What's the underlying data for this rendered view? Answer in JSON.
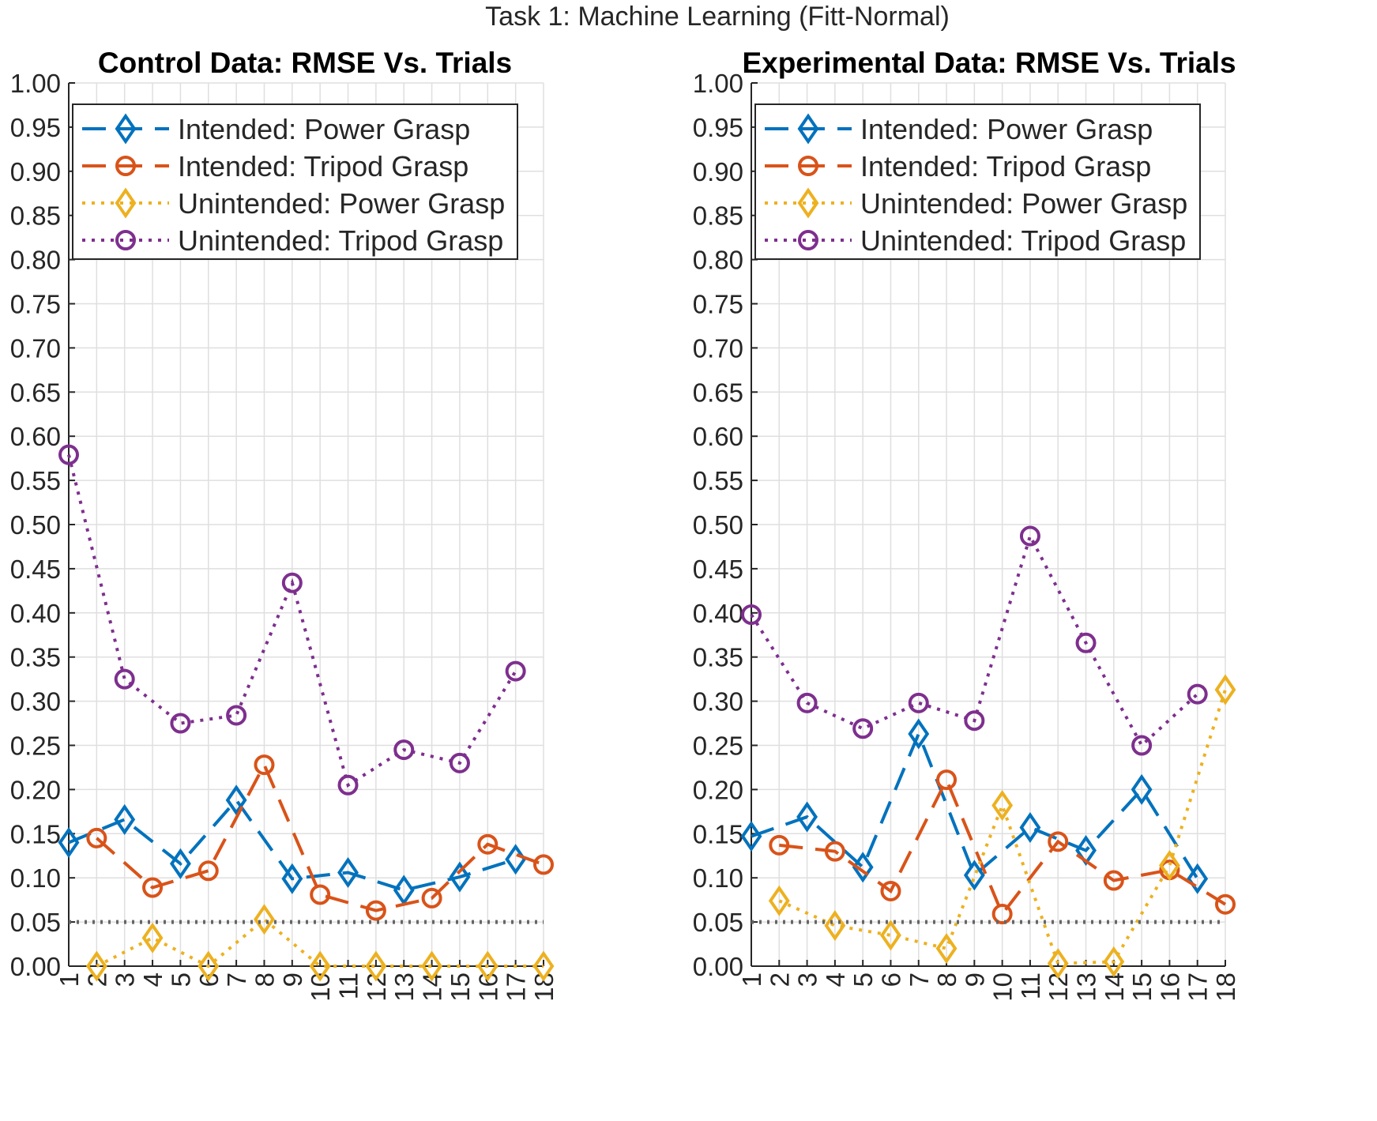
{
  "figure_title": "Task 1: Machine Learning (Fitt-Normal)",
  "chart_data": [
    {
      "type": "line",
      "title": "Control Data: RMSE Vs. Trials",
      "xlabel": "",
      "ylabel": "",
      "x": [
        1,
        2,
        3,
        4,
        5,
        6,
        7,
        8,
        9,
        10,
        11,
        12,
        13,
        14,
        15,
        16,
        17,
        18
      ],
      "x_tick_labels": [
        "1",
        "2",
        "3",
        "4",
        "5",
        "6",
        "7",
        "8",
        "9",
        "10",
        "11",
        "12",
        "13",
        "14",
        "15",
        "16",
        "17",
        "18"
      ],
      "y_tick_labels": [
        "0.00",
        "0.05",
        "0.10",
        "0.15",
        "0.20",
        "0.25",
        "0.30",
        "0.35",
        "0.40",
        "0.45",
        "0.50",
        "0.55",
        "0.60",
        "0.65",
        "0.70",
        "0.75",
        "0.80",
        "0.85",
        "0.90",
        "0.95",
        "1.00"
      ],
      "xlim": [
        1,
        18
      ],
      "ylim": [
        0,
        1
      ],
      "grid": true,
      "legend_position": "top-left",
      "series": [
        {
          "name": "Intended: Power Grasp",
          "color": "#0072BD",
          "line": "dashed",
          "marker": "diamond",
          "x": [
            1,
            3,
            5,
            7,
            9,
            11,
            13,
            15,
            17
          ],
          "values": [
            0.14,
            0.166,
            0.116,
            0.188,
            0.099,
            0.106,
            0.086,
            0.101,
            0.121
          ]
        },
        {
          "name": "Intended: Tripod Grasp",
          "color": "#D95319",
          "line": "dashed",
          "marker": "circle",
          "x": [
            2,
            4,
            6,
            8,
            10,
            12,
            14,
            16,
            18
          ],
          "values": [
            0.145,
            0.089,
            0.108,
            0.228,
            0.081,
            0.063,
            0.077,
            0.138,
            0.115
          ]
        },
        {
          "name": "Unintended: Power Grasp",
          "color": "#EDB120",
          "line": "dotted",
          "marker": "diamond",
          "x": [
            2,
            4,
            6,
            8,
            10,
            12,
            14,
            16,
            18
          ],
          "values": [
            0.0,
            0.032,
            0.0,
            0.053,
            0.0,
            0.0,
            0.0,
            0.0,
            0.0
          ]
        },
        {
          "name": "Unintended: Tripod Grasp",
          "color": "#7E2F8E",
          "line": "dotted",
          "marker": "circle",
          "x": [
            1,
            3,
            5,
            7,
            9,
            11,
            13,
            15,
            17
          ],
          "values": [
            0.579,
            0.325,
            0.275,
            0.284,
            0.434,
            0.205,
            0.245,
            0.23,
            0.334
          ]
        },
        {
          "name": "",
          "color": "#666666",
          "line": "dotted-thick",
          "marker": "none",
          "x": [
            1,
            18
          ],
          "values": [
            0.05,
            0.05
          ]
        }
      ]
    },
    {
      "type": "line",
      "title": "Experimental Data: RMSE Vs. Trials",
      "xlabel": "",
      "ylabel": "",
      "x": [
        1,
        2,
        3,
        4,
        5,
        6,
        7,
        8,
        9,
        10,
        11,
        12,
        13,
        14,
        15,
        16,
        17,
        18
      ],
      "x_tick_labels": [
        "1",
        "2",
        "3",
        "4",
        "5",
        "6",
        "7",
        "8",
        "9",
        "10",
        "11",
        "12",
        "13",
        "14",
        "15",
        "16",
        "17",
        "18"
      ],
      "y_tick_labels": [
        "0.00",
        "0.05",
        "0.10",
        "0.15",
        "0.20",
        "0.25",
        "0.30",
        "0.35",
        "0.40",
        "0.45",
        "0.50",
        "0.55",
        "0.60",
        "0.65",
        "0.70",
        "0.75",
        "0.80",
        "0.85",
        "0.90",
        "0.95",
        "1.00"
      ],
      "xlim": [
        1,
        18
      ],
      "ylim": [
        0,
        1
      ],
      "grid": true,
      "legend_position": "top-left",
      "series": [
        {
          "name": "Intended: Power Grasp",
          "color": "#0072BD",
          "line": "dashed",
          "marker": "diamond",
          "x": [
            1,
            3,
            5,
            7,
            9,
            11,
            13,
            15,
            17
          ],
          "values": [
            0.147,
            0.169,
            0.112,
            0.263,
            0.103,
            0.157,
            0.131,
            0.2,
            0.099
          ]
        },
        {
          "name": "Intended: Tripod Grasp",
          "color": "#D95319",
          "line": "dashed",
          "marker": "circle",
          "x": [
            2,
            4,
            6,
            8,
            10,
            12,
            14,
            16,
            18
          ],
          "values": [
            0.137,
            0.13,
            0.085,
            0.211,
            0.059,
            0.141,
            0.097,
            0.109,
            0.07
          ]
        },
        {
          "name": "Unintended: Power Grasp",
          "color": "#EDB120",
          "line": "dotted",
          "marker": "diamond",
          "x": [
            2,
            4,
            6,
            8,
            10,
            12,
            14,
            16,
            18
          ],
          "values": [
            0.074,
            0.046,
            0.035,
            0.02,
            0.182,
            0.003,
            0.005,
            0.114,
            0.313
          ]
        },
        {
          "name": "Unintended: Tripod Grasp",
          "color": "#7E2F8E",
          "line": "dotted",
          "marker": "circle",
          "x": [
            1,
            3,
            5,
            7,
            9,
            11,
            13,
            15,
            17
          ],
          "values": [
            0.398,
            0.298,
            0.269,
            0.298,
            0.278,
            0.487,
            0.366,
            0.25,
            0.308
          ]
        },
        {
          "name": "",
          "color": "#666666",
          "line": "dotted-thick",
          "marker": "none",
          "x": [
            1,
            18
          ],
          "values": [
            0.05,
            0.05
          ]
        }
      ]
    }
  ]
}
